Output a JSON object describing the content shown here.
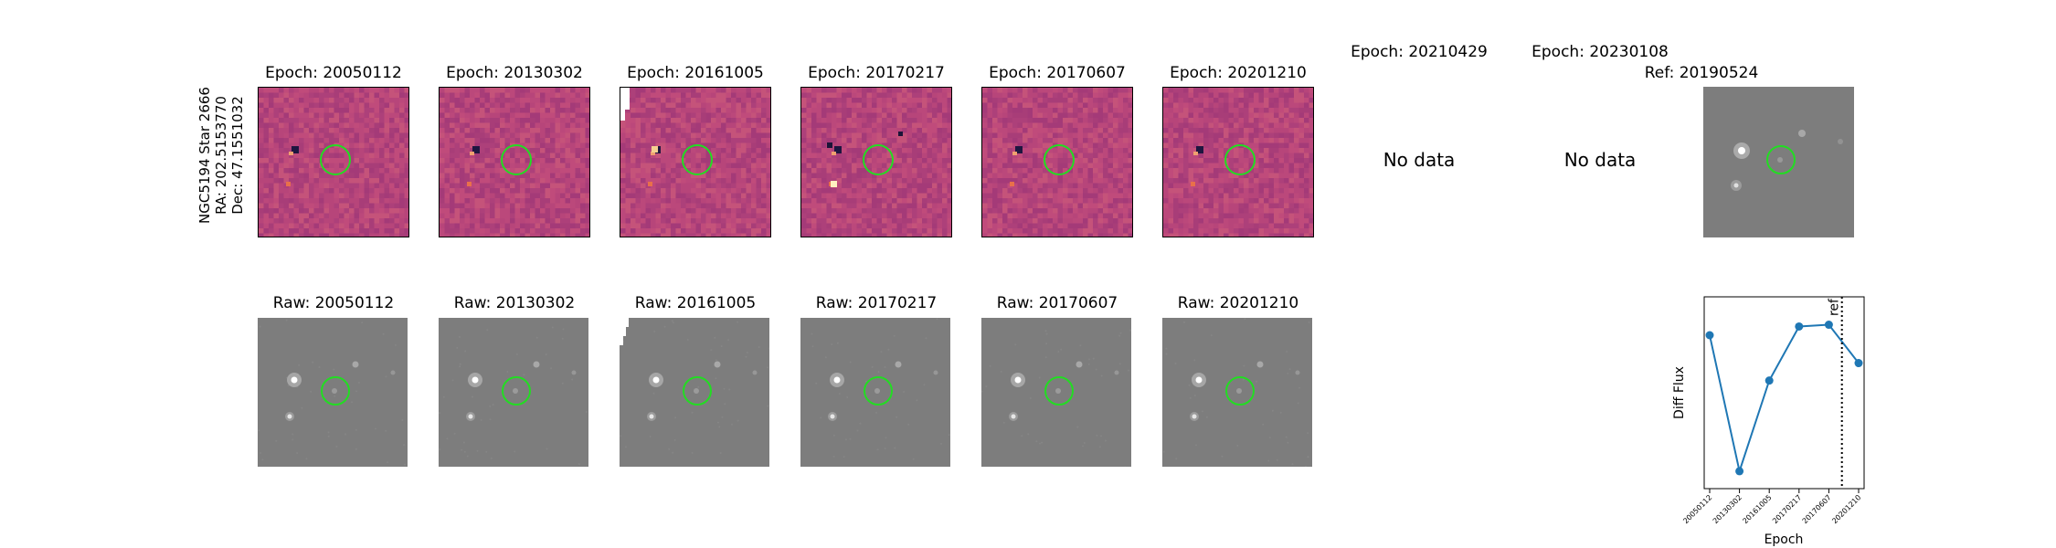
{
  "star_label": {
    "name": "NGC5194 Star 2666",
    "ra": "RA: 202.5153770",
    "dec": "Dec: 47.1551032"
  },
  "diff_panels": [
    {
      "title": "Epoch: 20050112",
      "has_data": true
    },
    {
      "title": "Epoch: 20130302",
      "has_data": true
    },
    {
      "title": "Epoch: 20161005",
      "has_data": true
    },
    {
      "title": "Epoch: 20170217",
      "has_data": true
    },
    {
      "title": "Epoch: 20170607",
      "has_data": true
    },
    {
      "title": "Epoch: 20201210",
      "has_data": true
    },
    {
      "title": "Epoch: 20210429",
      "has_data": false,
      "message": "No data"
    },
    {
      "title": "Epoch: 20230108",
      "has_data": false,
      "message": "No data"
    }
  ],
  "ref_panel": {
    "title": "Ref: 20190524"
  },
  "raw_panels": [
    {
      "title": "Raw: 20050112"
    },
    {
      "title": "Raw: 20130302"
    },
    {
      "title": "Raw: 20161005"
    },
    {
      "title": "Raw: 20170217"
    },
    {
      "title": "Raw: 20170607"
    },
    {
      "title": "Raw: 20201210"
    }
  ],
  "colors": {
    "diff_background": "#b5437a",
    "raw_background": "#7d7d7d",
    "aperture": "#22dd22",
    "line": "#1f77b4"
  },
  "chart_data": {
    "type": "line",
    "x": [
      "20050112",
      "20130302",
      "20161005",
      "20170217",
      "20170607",
      "20201210"
    ],
    "values": [
      0.78,
      0.0,
      0.52,
      0.83,
      0.84,
      0.62
    ],
    "ylim": [
      -0.1,
      1.0
    ],
    "xlabel": "Epoch",
    "ylabel": "Diff Flux",
    "yticks": "hidden",
    "reference_line": {
      "label": "ref",
      "position_between": [
        "20170607",
        "20201210"
      ],
      "style": "dotted"
    }
  }
}
